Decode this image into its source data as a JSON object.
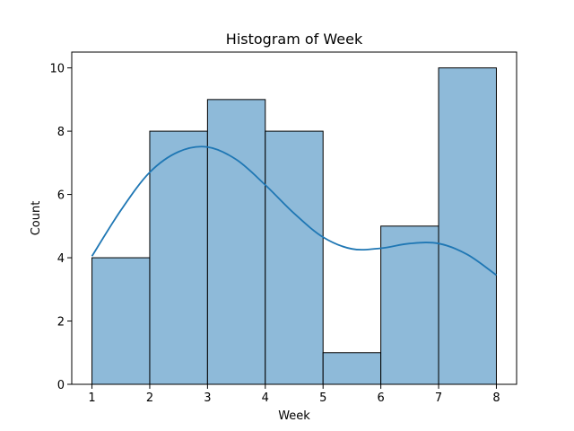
{
  "chart_data": {
    "type": "bar",
    "title": "Histogram of Week",
    "xlabel": "Week",
    "ylabel": "Count",
    "bins": [
      {
        "start": 1,
        "end": 2,
        "count": 4
      },
      {
        "start": 2,
        "end": 3,
        "count": 8
      },
      {
        "start": 3,
        "end": 4,
        "count": 9
      },
      {
        "start": 4,
        "end": 5,
        "count": 8
      },
      {
        "start": 5,
        "end": 6,
        "count": 1
      },
      {
        "start": 6,
        "end": 7,
        "count": 5
      },
      {
        "start": 7,
        "end": 8,
        "count": 10
      }
    ],
    "kde": {
      "x": [
        1,
        1.5,
        2,
        2.5,
        3,
        3.5,
        4,
        4.5,
        5,
        5.5,
        6,
        6.5,
        7,
        7.5,
        8
      ],
      "y": [
        4.05,
        5.5,
        6.7,
        7.35,
        7.5,
        7.1,
        6.3,
        5.4,
        4.65,
        4.28,
        4.3,
        4.45,
        4.45,
        4.1,
        3.45
      ]
    },
    "xlim": [
      0.65,
      8.35
    ],
    "ylim": [
      0,
      10.5
    ],
    "xticks": [
      1,
      2,
      3,
      4,
      5,
      6,
      7,
      8
    ],
    "yticks": [
      0,
      2,
      4,
      6,
      8,
      10
    ],
    "grid": false,
    "colors": {
      "bar_fill": "#8ebad9",
      "bar_edge": "#000000",
      "kde_line": "#1f77b4"
    }
  }
}
